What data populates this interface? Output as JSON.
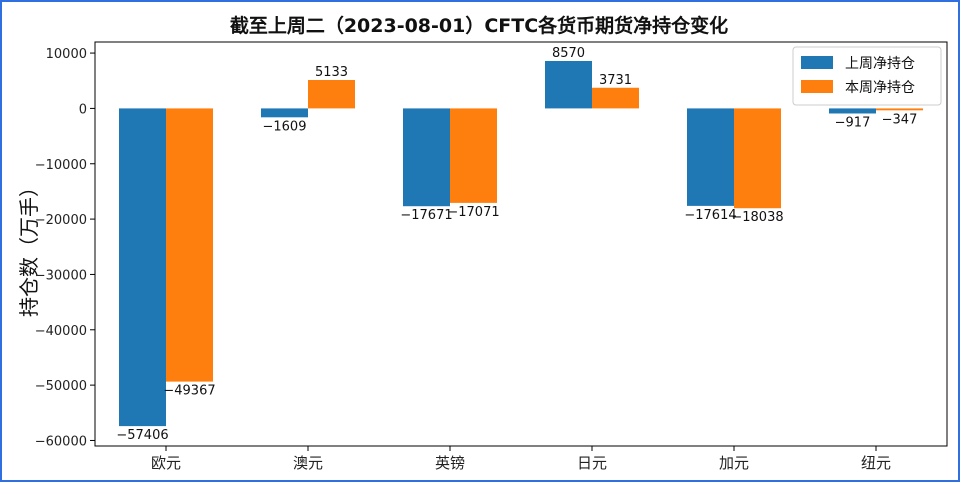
{
  "chart_data": {
    "type": "bar",
    "title": "截至上周二（2023-08-01）CFTC各货币期货净持仓变化",
    "ylabel": "持仓数（万手）",
    "xlabel": "",
    "categories": [
      "欧元",
      "澳元",
      "英镑",
      "日元",
      "加元",
      "纽元"
    ],
    "series": [
      {
        "name": "上周净持仓",
        "color": "#1f77b4",
        "values": [
          -57406,
          -1609,
          -17671,
          8570,
          -17614,
          -917
        ]
      },
      {
        "name": "本周净持仓",
        "color": "#ff7f0e",
        "values": [
          -49367,
          5133,
          -17071,
          3731,
          -18038,
          -347
        ]
      }
    ],
    "ylim": [
      -61000,
      12000
    ],
    "yticks": [
      10000,
      0,
      -10000,
      -20000,
      -30000,
      -40000,
      -50000,
      -60000
    ],
    "grid": false,
    "legend_position": "top-right"
  }
}
